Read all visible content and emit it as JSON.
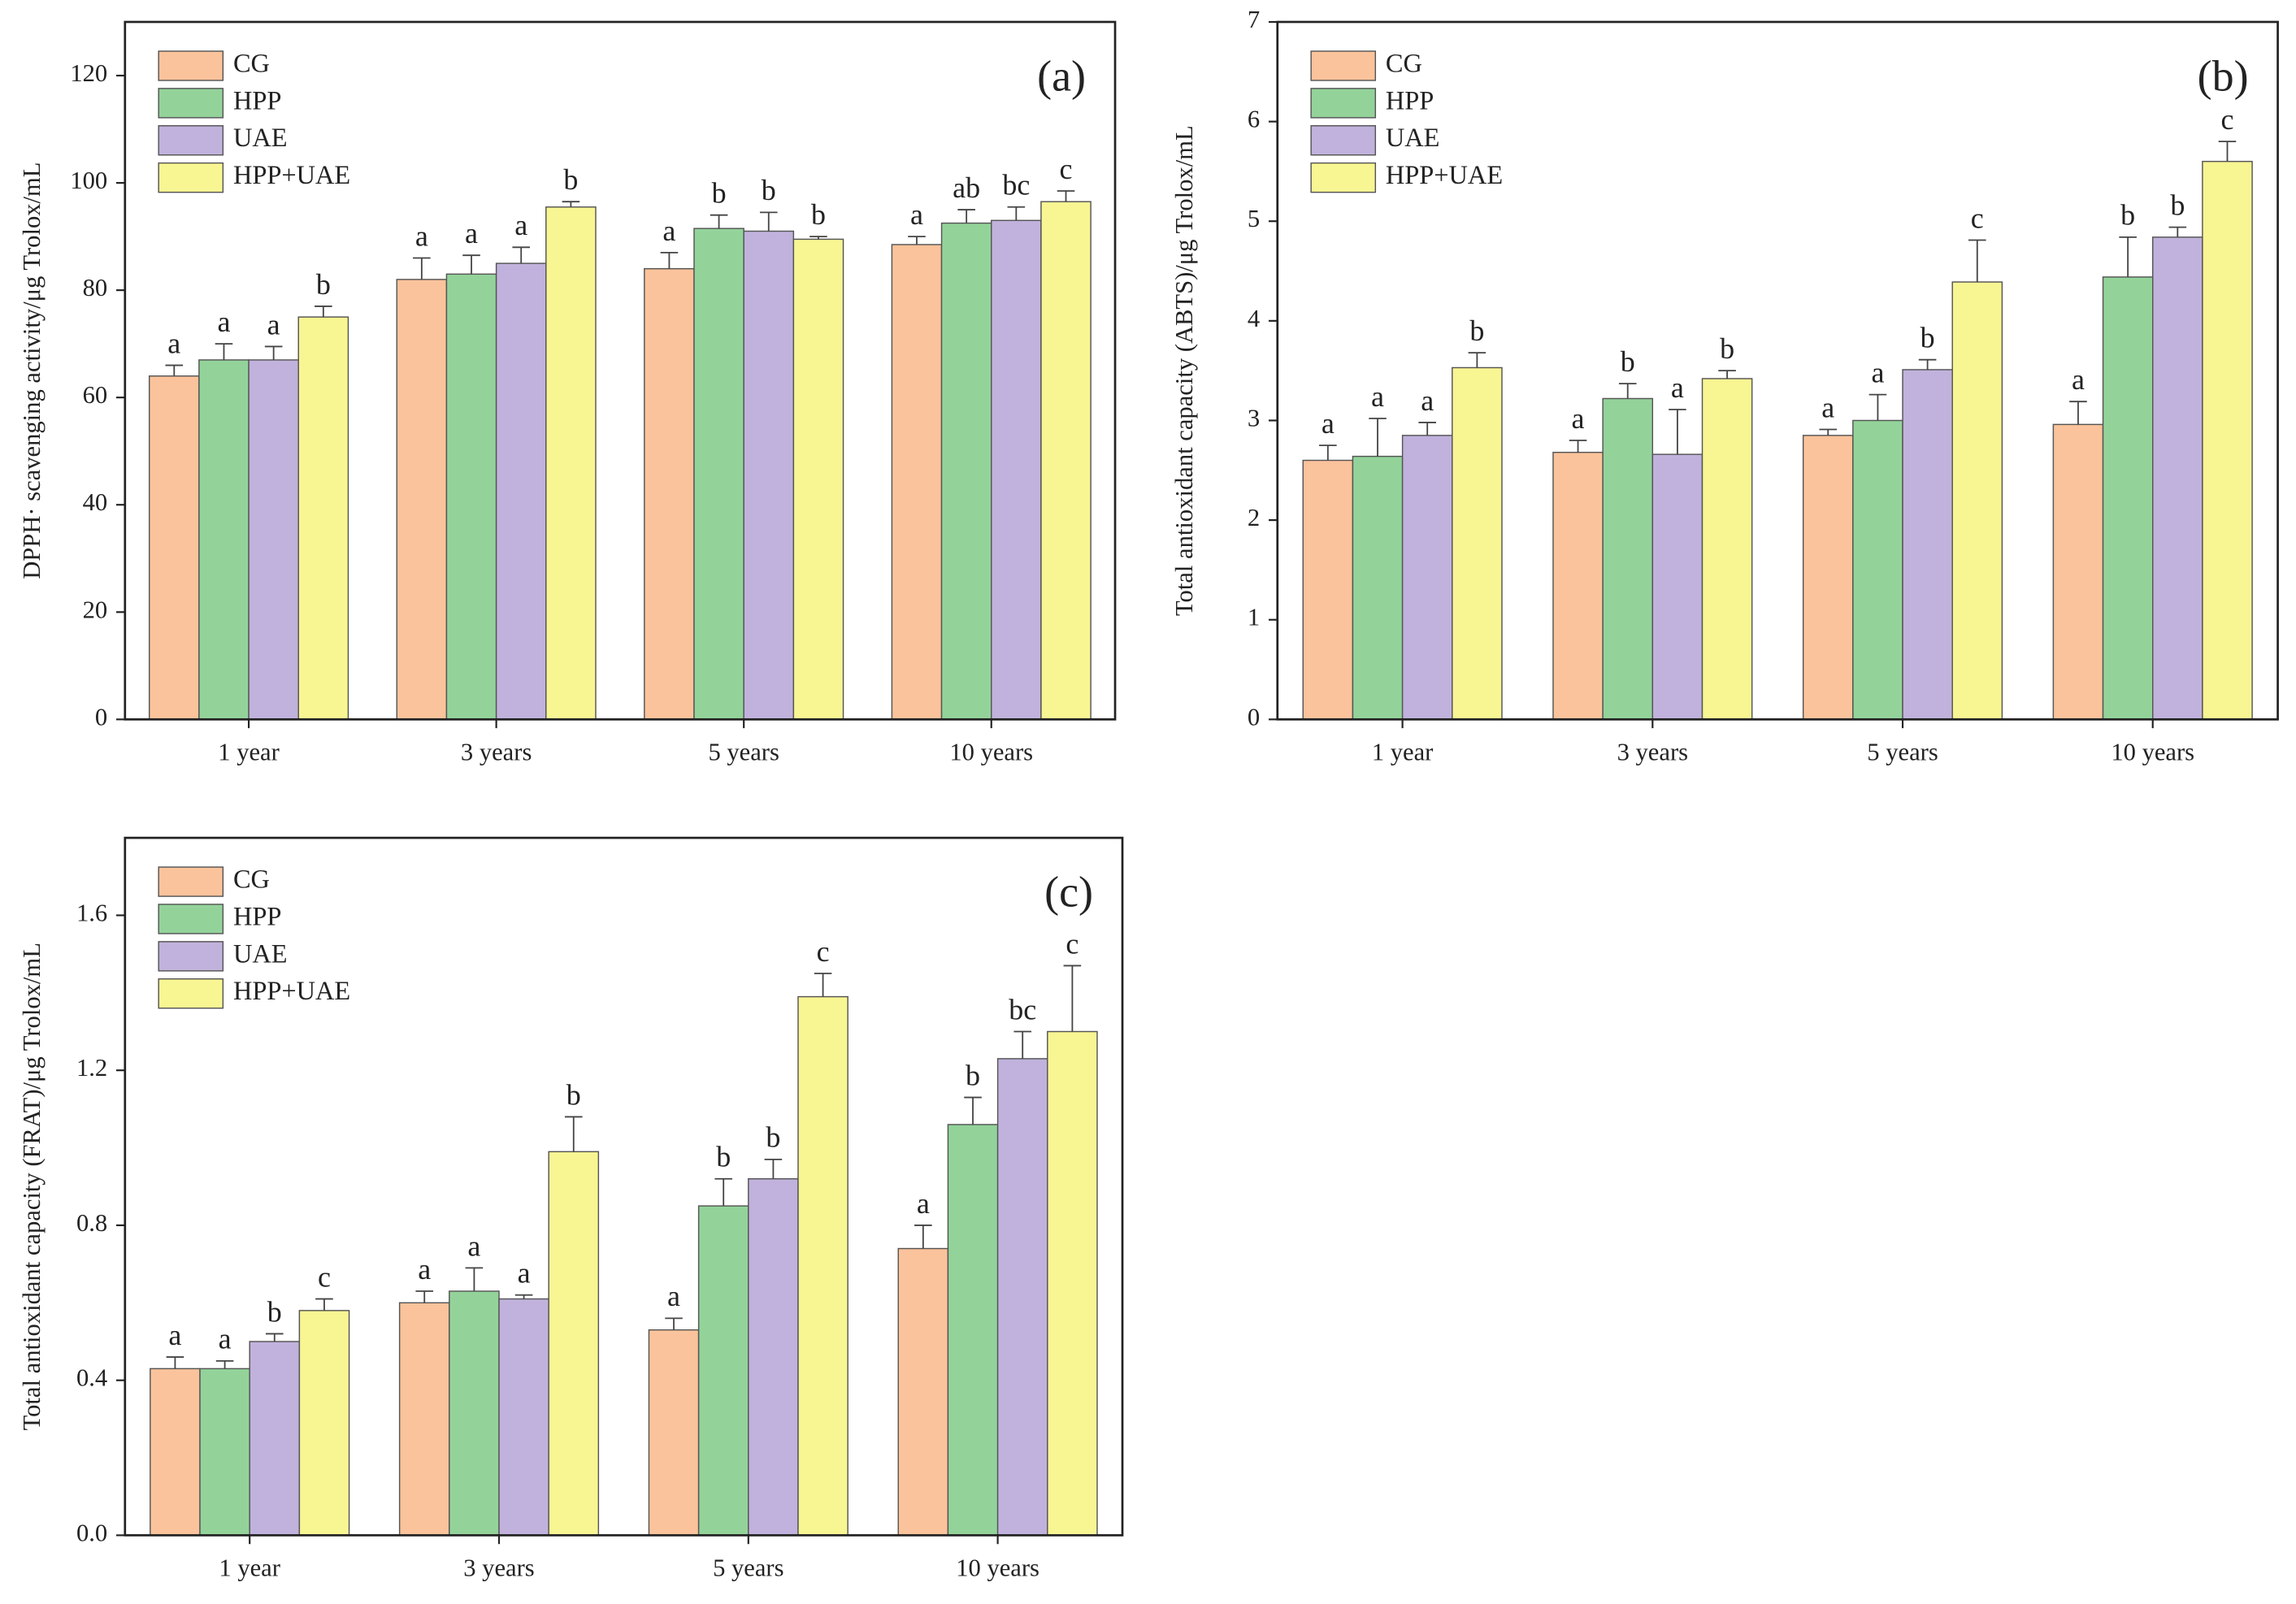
{
  "chart_data": [
    {
      "type": "bar",
      "panel_label": "(a)",
      "ylabel": "DPPH· scavenging activity/μg Trolox/mL",
      "categories": [
        "1 year",
        "3 years",
        "5 years",
        "10 years"
      ],
      "ylim": [
        0,
        130
      ],
      "yticks": [
        0,
        20,
        40,
        60,
        80,
        100,
        120
      ],
      "series": [
        {
          "name": "CG",
          "color": "#fbc39b",
          "values": [
            64,
            82,
            84,
            88.5
          ],
          "errors": [
            2,
            4,
            3,
            1.5
          ],
          "letters": [
            "a",
            "a",
            "a",
            "a"
          ]
        },
        {
          "name": "HPP",
          "color": "#93d39a",
          "values": [
            67,
            83,
            91.5,
            92.5
          ],
          "errors": [
            3,
            3.5,
            2.5,
            2.5
          ],
          "letters": [
            "a",
            "a",
            "b",
            "ab"
          ]
        },
        {
          "name": "UAE",
          "color": "#c0b2dc",
          "values": [
            67,
            85,
            91,
            93
          ],
          "errors": [
            2.5,
            3,
            3.5,
            2.5
          ],
          "letters": [
            "a",
            "a",
            "b",
            "bc"
          ]
        },
        {
          "name": "HPP+UAE",
          "color": "#f8f593",
          "values": [
            75,
            95.5,
            89.5,
            96.5
          ],
          "errors": [
            2,
            1,
            0.5,
            2
          ],
          "letters": [
            "b",
            "b",
            "b",
            "c"
          ]
        }
      ]
    },
    {
      "type": "bar",
      "panel_label": "(b)",
      "ylabel": "Total antioxidant capacity (ABTS)/μg Trolox/mL",
      "categories": [
        "1 year",
        "3 years",
        "5 years",
        "10 years"
      ],
      "ylim": [
        0,
        7
      ],
      "yticks": [
        0,
        1,
        2,
        3,
        4,
        5,
        6,
        7
      ],
      "series": [
        {
          "name": "CG",
          "color": "#fbc39b",
          "values": [
            2.6,
            2.68,
            2.85,
            2.96
          ],
          "errors": [
            0.15,
            0.12,
            0.06,
            0.23
          ],
          "letters": [
            "a",
            "a",
            "a",
            "a"
          ]
        },
        {
          "name": "HPP",
          "color": "#93d39a",
          "values": [
            2.64,
            3.22,
            3.0,
            4.44
          ],
          "errors": [
            0.38,
            0.15,
            0.26,
            0.4
          ],
          "letters": [
            "a",
            "b",
            "a",
            "b"
          ]
        },
        {
          "name": "UAE",
          "color": "#c0b2dc",
          "values": [
            2.85,
            2.66,
            3.51,
            4.84
          ],
          "errors": [
            0.13,
            0.45,
            0.1,
            0.1
          ],
          "letters": [
            "a",
            "a",
            "b",
            "b"
          ]
        },
        {
          "name": "HPP+UAE",
          "color": "#f8f593",
          "values": [
            3.53,
            3.42,
            4.39,
            5.6
          ],
          "errors": [
            0.15,
            0.08,
            0.42,
            0.2
          ],
          "letters": [
            "b",
            "b",
            "c",
            "c"
          ]
        }
      ]
    },
    {
      "type": "bar",
      "panel_label": "(c)",
      "ylabel": "Total antioxidant capacity (FRAT)/μg Trolox/mL",
      "categories": [
        "1 year",
        "3 years",
        "5 years",
        "10 years"
      ],
      "ylim": [
        0,
        1.8
      ],
      "yticks": [
        {
          "value": 0,
          "label": "0.0"
        },
        0.4,
        0.8,
        1.2,
        1.6
      ],
      "series": [
        {
          "name": "CG",
          "color": "#fbc39b",
          "values": [
            0.43,
            0.6,
            0.53,
            0.74
          ],
          "errors": [
            0.03,
            0.03,
            0.03,
            0.06
          ],
          "letters": [
            "a",
            "a",
            "a",
            "a"
          ]
        },
        {
          "name": "HPP",
          "color": "#93d39a",
          "values": [
            0.43,
            0.63,
            0.85,
            1.06
          ],
          "errors": [
            0.02,
            0.06,
            0.07,
            0.07
          ],
          "letters": [
            "a",
            "a",
            "b",
            "b"
          ]
        },
        {
          "name": "UAE",
          "color": "#c0b2dc",
          "values": [
            0.5,
            0.61,
            0.92,
            1.23
          ],
          "errors": [
            0.02,
            0.01,
            0.05,
            0.07
          ],
          "letters": [
            "b",
            "a",
            "b",
            "bc"
          ]
        },
        {
          "name": "HPP+UAE",
          "color": "#f8f593",
          "values": [
            0.58,
            0.99,
            1.39,
            1.3
          ],
          "errors": [
            0.03,
            0.09,
            0.06,
            0.17
          ],
          "letters": [
            "c",
            "b",
            "c",
            "c"
          ]
        }
      ]
    }
  ]
}
